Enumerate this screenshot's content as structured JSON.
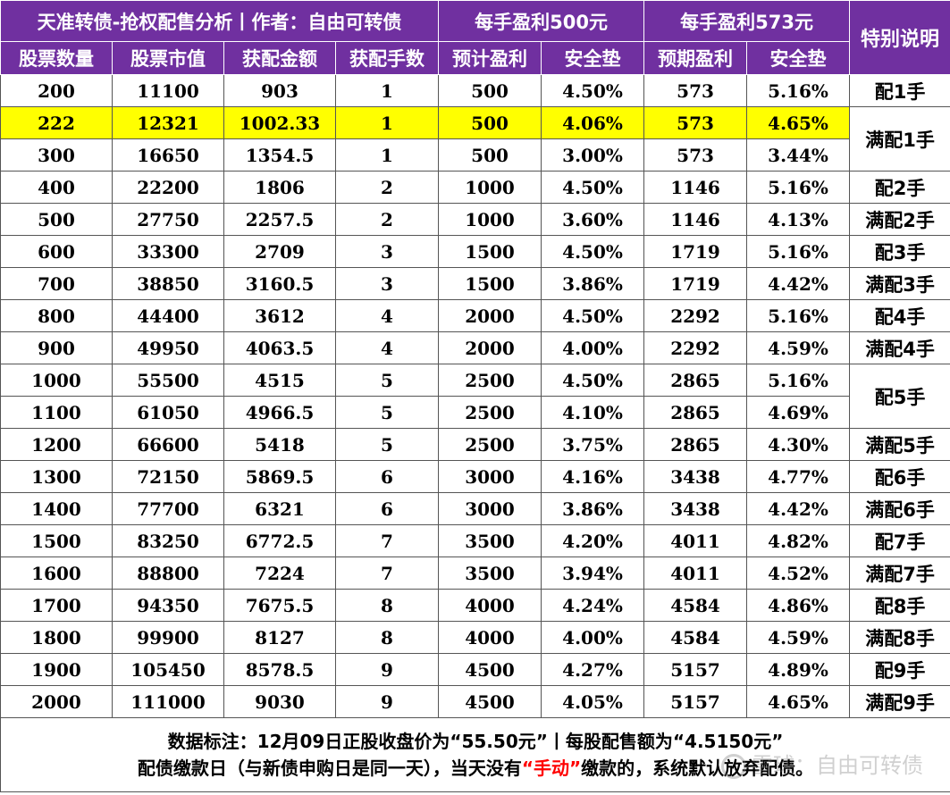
{
  "header": {
    "title": "天准转债-抢权配售分析丨作者：自由可转债",
    "group500": "每手盈利500元",
    "group573": "每手盈利573元",
    "special": "特别说明",
    "columns": [
      "股票数量",
      "股票市值",
      "获配金额",
      "获配手数",
      "预计盈利",
      "安全垫",
      "预期盈利",
      "安全垫"
    ]
  },
  "rows": [
    {
      "shares": "200",
      "market_value": "11100",
      "amount": "903",
      "lots": "1",
      "profit500": "500",
      "safety500": "4.50%",
      "profit573": "573",
      "safety573": "5.16%"
    },
    {
      "shares": "222",
      "market_value": "12321",
      "amount": "1002.33",
      "lots": "1",
      "profit500": "500",
      "safety500": "4.06%",
      "profit573": "573",
      "safety573": "4.65%",
      "highlight": true
    },
    {
      "shares": "300",
      "market_value": "16650",
      "amount": "1354.5",
      "lots": "1",
      "profit500": "500",
      "safety500": "3.00%",
      "profit573": "573",
      "safety573": "3.44%"
    },
    {
      "shares": "400",
      "market_value": "22200",
      "amount": "1806",
      "lots": "2",
      "profit500": "1000",
      "safety500": "4.50%",
      "profit573": "1146",
      "safety573": "5.16%"
    },
    {
      "shares": "500",
      "market_value": "27750",
      "amount": "2257.5",
      "lots": "2",
      "profit500": "1000",
      "safety500": "3.60%",
      "profit573": "1146",
      "safety573": "4.13%"
    },
    {
      "shares": "600",
      "market_value": "33300",
      "amount": "2709",
      "lots": "3",
      "profit500": "1500",
      "safety500": "4.50%",
      "profit573": "1719",
      "safety573": "5.16%"
    },
    {
      "shares": "700",
      "market_value": "38850",
      "amount": "3160.5",
      "lots": "3",
      "profit500": "1500",
      "safety500": "3.86%",
      "profit573": "1719",
      "safety573": "4.42%"
    },
    {
      "shares": "800",
      "market_value": "44400",
      "amount": "3612",
      "lots": "4",
      "profit500": "2000",
      "safety500": "4.50%",
      "profit573": "2292",
      "safety573": "5.16%"
    },
    {
      "shares": "900",
      "market_value": "49950",
      "amount": "4063.5",
      "lots": "4",
      "profit500": "2000",
      "safety500": "4.00%",
      "profit573": "2292",
      "safety573": "4.59%"
    },
    {
      "shares": "1000",
      "market_value": "55500",
      "amount": "4515",
      "lots": "5",
      "profit500": "2500",
      "safety500": "4.50%",
      "profit573": "2865",
      "safety573": "5.16%"
    },
    {
      "shares": "1100",
      "market_value": "61050",
      "amount": "4966.5",
      "lots": "5",
      "profit500": "2500",
      "safety500": "4.10%",
      "profit573": "2865",
      "safety573": "4.69%"
    },
    {
      "shares": "1200",
      "market_value": "66600",
      "amount": "5418",
      "lots": "5",
      "profit500": "2500",
      "safety500": "3.75%",
      "profit573": "2865",
      "safety573": "4.30%"
    },
    {
      "shares": "1300",
      "market_value": "72150",
      "amount": "5869.5",
      "lots": "6",
      "profit500": "3000",
      "safety500": "4.16%",
      "profit573": "3438",
      "safety573": "4.77%"
    },
    {
      "shares": "1400",
      "market_value": "77700",
      "amount": "6321",
      "lots": "6",
      "profit500": "3000",
      "safety500": "3.86%",
      "profit573": "3438",
      "safety573": "4.42%"
    },
    {
      "shares": "1500",
      "market_value": "83250",
      "amount": "6772.5",
      "lots": "7",
      "profit500": "3500",
      "safety500": "4.20%",
      "profit573": "4011",
      "safety573": "4.82%"
    },
    {
      "shares": "1600",
      "market_value": "88800",
      "amount": "7224",
      "lots": "7",
      "profit500": "3500",
      "safety500": "3.94%",
      "profit573": "4011",
      "safety573": "4.52%"
    },
    {
      "shares": "1700",
      "market_value": "94350",
      "amount": "7675.5",
      "lots": "8",
      "profit500": "4000",
      "safety500": "4.24%",
      "profit573": "4584",
      "safety573": "4.86%"
    },
    {
      "shares": "1800",
      "market_value": "99900",
      "amount": "8127",
      "lots": "8",
      "profit500": "4000",
      "safety500": "4.00%",
      "profit573": "4584",
      "safety573": "4.59%"
    },
    {
      "shares": "1900",
      "market_value": "105450",
      "amount": "8578.5",
      "lots": "9",
      "profit500": "4500",
      "safety500": "4.27%",
      "profit573": "5157",
      "safety573": "4.89%"
    },
    {
      "shares": "2000",
      "market_value": "111000",
      "amount": "9030",
      "lots": "9",
      "profit500": "4500",
      "safety500": "4.05%",
      "profit573": "5157",
      "safety573": "4.65%"
    }
  ],
  "notes": [
    {
      "text": "配1手",
      "span": 1
    },
    {
      "text": "满配1手",
      "span": 2
    },
    {
      "text": "配2手",
      "span": 1
    },
    {
      "text": "满配2手",
      "span": 1
    },
    {
      "text": "配3手",
      "span": 1
    },
    {
      "text": "满配3手",
      "span": 1
    },
    {
      "text": "配4手",
      "span": 1
    },
    {
      "text": "满配4手",
      "span": 1
    },
    {
      "text": "配5手",
      "span": 2
    },
    {
      "text": "满配5手",
      "span": 1
    },
    {
      "text": "配6手",
      "span": 1
    },
    {
      "text": "满配6手",
      "span": 1
    },
    {
      "text": "配7手",
      "span": 1
    },
    {
      "text": "满配7手",
      "span": 1
    },
    {
      "text": "配8手",
      "span": 1
    },
    {
      "text": "满配8手",
      "span": 1
    },
    {
      "text": "配9手",
      "span": 1
    },
    {
      "text": "满配9手",
      "span": 1
    }
  ],
  "footer": {
    "line1": "数据标注：12月09日正股收盘价为“55.50元”丨每股配售额为“4.5150元”",
    "line2_before": "配债缴款日（与新债申购日是同一天），当天没有",
    "line2_red": "“手动”",
    "line2_after": "缴款的，系统默认放弃配债。"
  },
  "watermark": "雪球：自由可转债",
  "colors": {
    "header_bg": "#7030a0",
    "highlight": "#ffff00",
    "red_text": "#ff0000"
  }
}
